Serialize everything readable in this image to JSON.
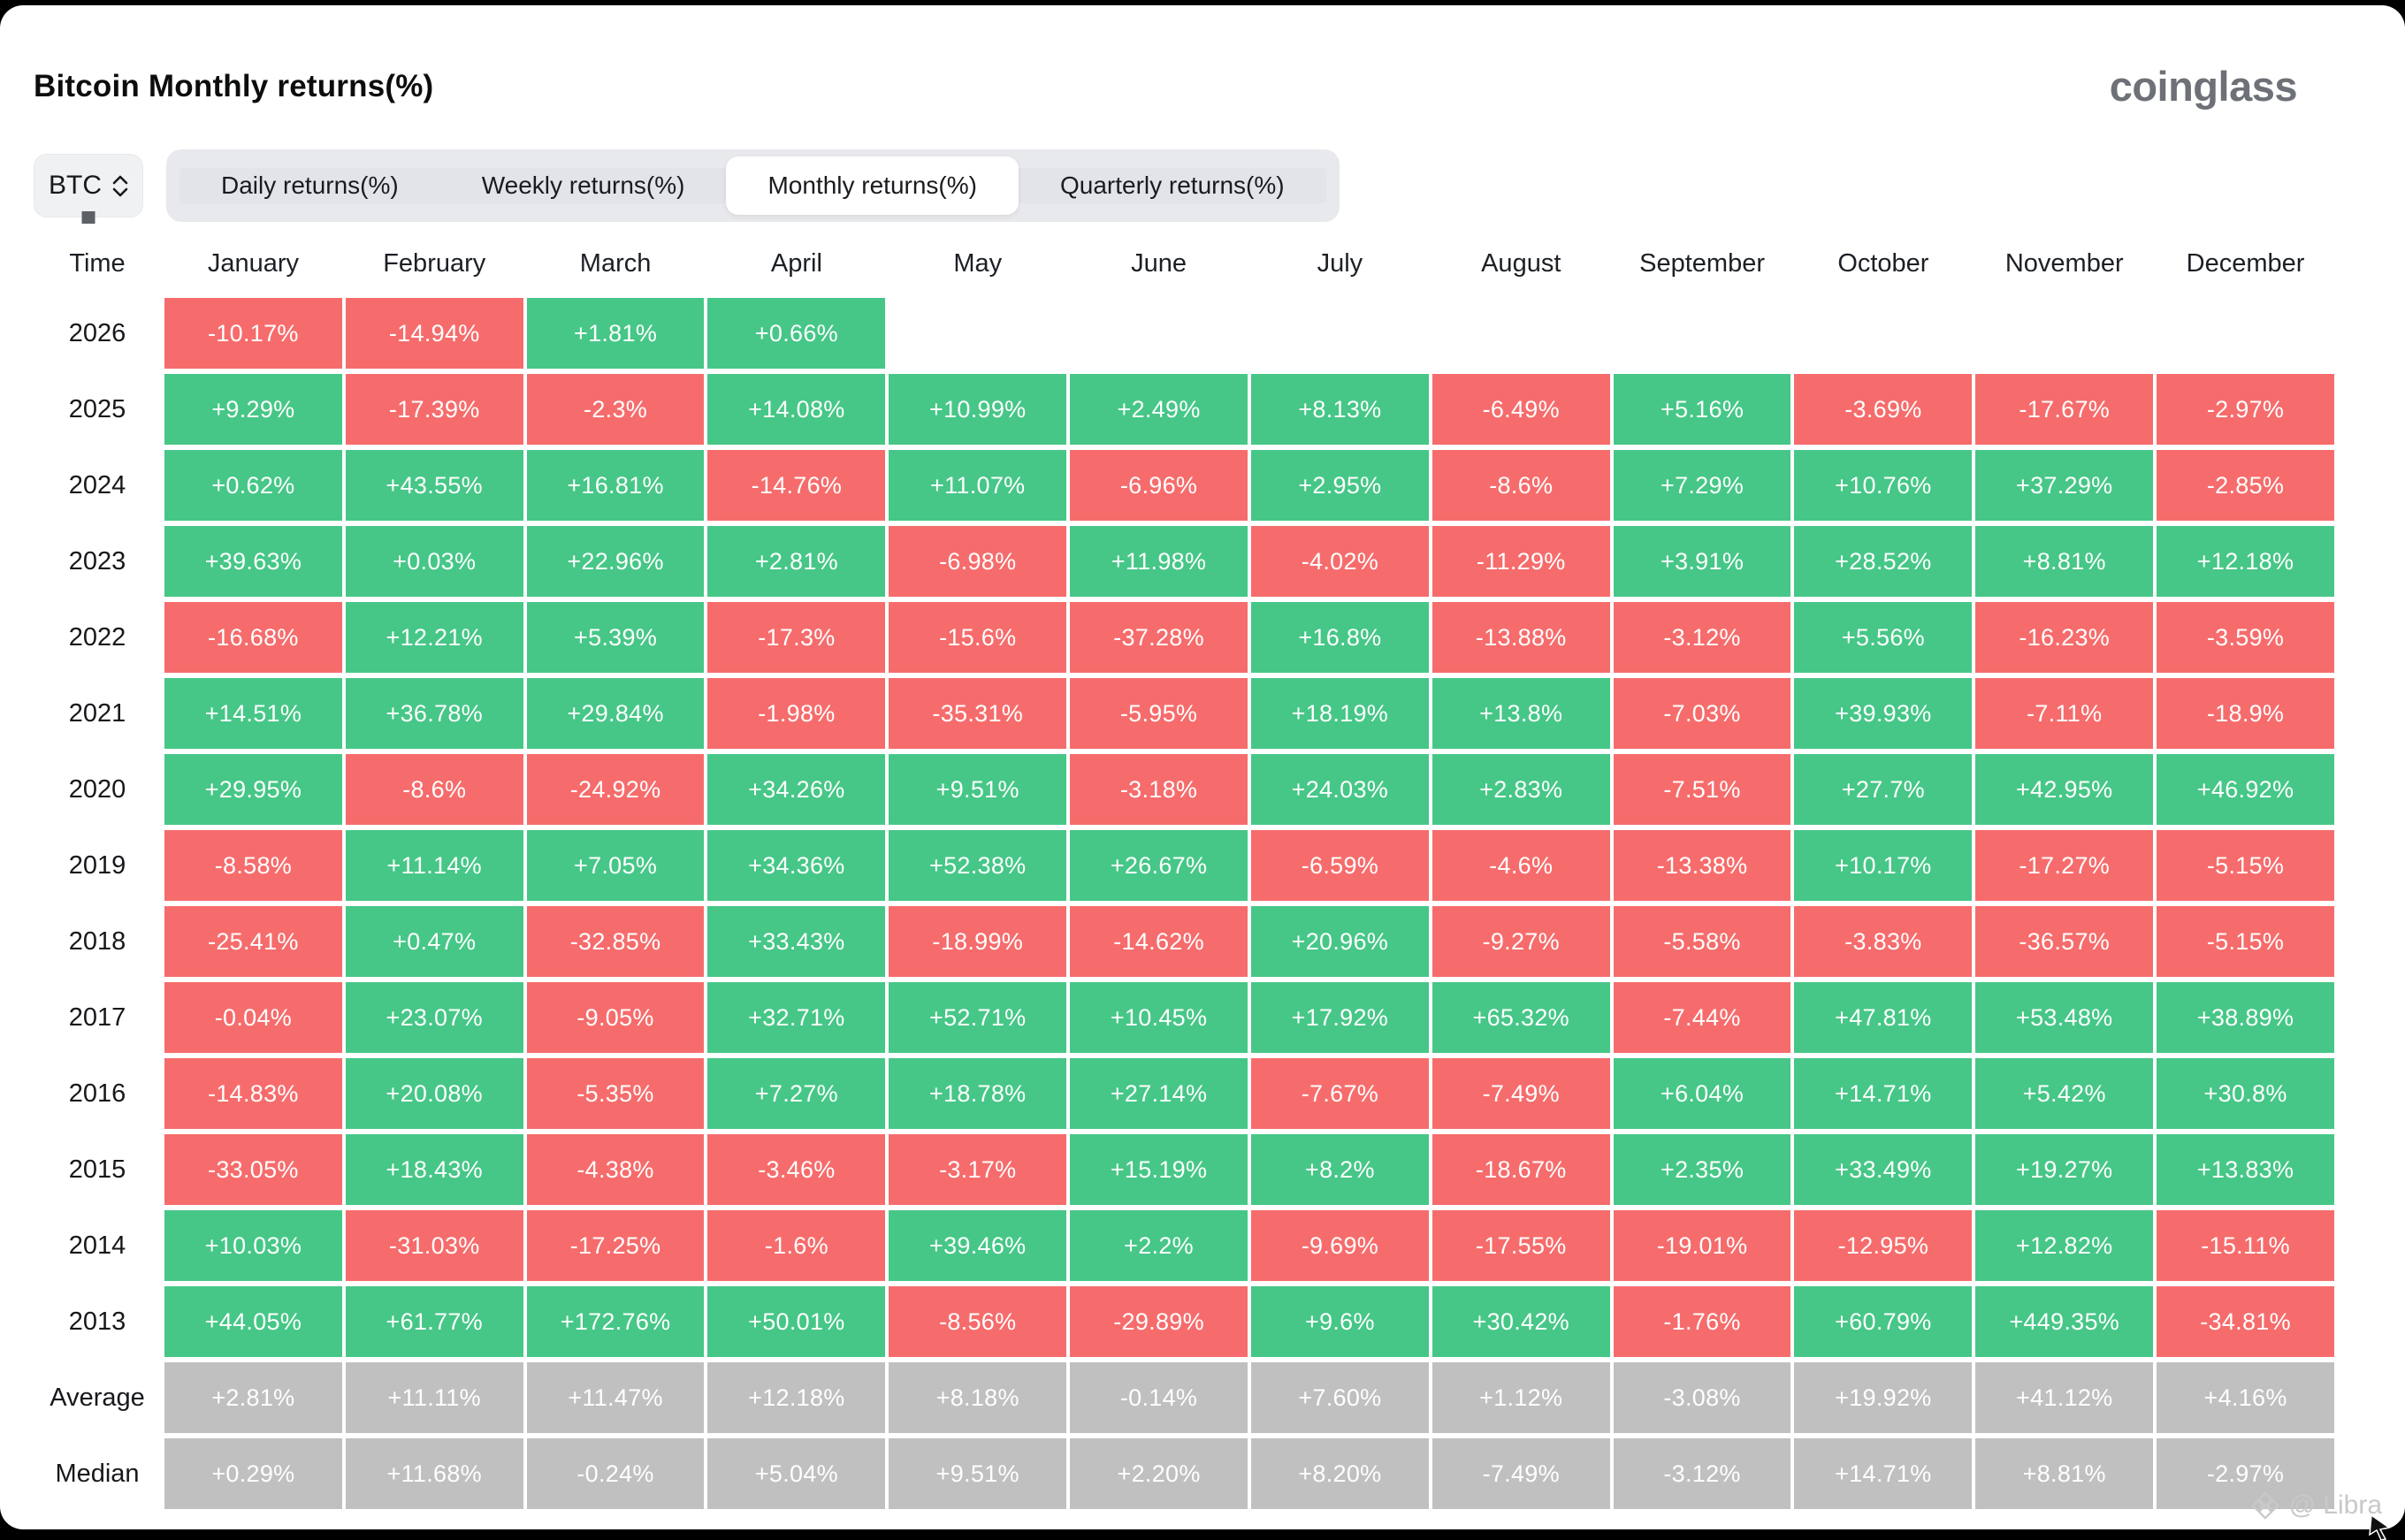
{
  "header": {
    "title": "Bitcoin Monthly returns(%)",
    "brand": "coinglass"
  },
  "controls": {
    "symbol_select": {
      "value": "BTC"
    },
    "tabs": [
      {
        "label": "Daily returns(%)",
        "active": false
      },
      {
        "label": "Weekly returns(%)",
        "active": false
      },
      {
        "label": "Monthly returns(%)",
        "active": true
      },
      {
        "label": "Quarterly returns(%)",
        "active": false
      }
    ]
  },
  "colors": {
    "positive": "#46c787",
    "negative": "#f66c6c",
    "neutral": "#c0c0c0"
  },
  "table": {
    "time_header": "Time",
    "month_headers": [
      "January",
      "February",
      "March",
      "April",
      "May",
      "June",
      "July",
      "August",
      "September",
      "October",
      "November",
      "December"
    ],
    "rows": [
      {
        "label": "2026",
        "type": "year",
        "values": [
          "-10.17%",
          "-14.94%",
          "+1.81%",
          "+0.66%",
          "",
          "",
          "",
          "",
          "",
          "",
          "",
          ""
        ]
      },
      {
        "label": "2025",
        "type": "year",
        "values": [
          "+9.29%",
          "-17.39%",
          "-2.3%",
          "+14.08%",
          "+10.99%",
          "+2.49%",
          "+8.13%",
          "-6.49%",
          "+5.16%",
          "-3.69%",
          "-17.67%",
          "-2.97%"
        ]
      },
      {
        "label": "2024",
        "type": "year",
        "values": [
          "+0.62%",
          "+43.55%",
          "+16.81%",
          "-14.76%",
          "+11.07%",
          "-6.96%",
          "+2.95%",
          "-8.6%",
          "+7.29%",
          "+10.76%",
          "+37.29%",
          "-2.85%"
        ]
      },
      {
        "label": "2023",
        "type": "year",
        "values": [
          "+39.63%",
          "+0.03%",
          "+22.96%",
          "+2.81%",
          "-6.98%",
          "+11.98%",
          "-4.02%",
          "-11.29%",
          "+3.91%",
          "+28.52%",
          "+8.81%",
          "+12.18%"
        ]
      },
      {
        "label": "2022",
        "type": "year",
        "values": [
          "-16.68%",
          "+12.21%",
          "+5.39%",
          "-17.3%",
          "-15.6%",
          "-37.28%",
          "+16.8%",
          "-13.88%",
          "-3.12%",
          "+5.56%",
          "-16.23%",
          "-3.59%"
        ]
      },
      {
        "label": "2021",
        "type": "year",
        "values": [
          "+14.51%",
          "+36.78%",
          "+29.84%",
          "-1.98%",
          "-35.31%",
          "-5.95%",
          "+18.19%",
          "+13.8%",
          "-7.03%",
          "+39.93%",
          "-7.11%",
          "-18.9%"
        ]
      },
      {
        "label": "2020",
        "type": "year",
        "values": [
          "+29.95%",
          "-8.6%",
          "-24.92%",
          "+34.26%",
          "+9.51%",
          "-3.18%",
          "+24.03%",
          "+2.83%",
          "-7.51%",
          "+27.7%",
          "+42.95%",
          "+46.92%"
        ]
      },
      {
        "label": "2019",
        "type": "year",
        "values": [
          "-8.58%",
          "+11.14%",
          "+7.05%",
          "+34.36%",
          "+52.38%",
          "+26.67%",
          "-6.59%",
          "-4.6%",
          "-13.38%",
          "+10.17%",
          "-17.27%",
          "-5.15%"
        ]
      },
      {
        "label": "2018",
        "type": "year",
        "values": [
          "-25.41%",
          "+0.47%",
          "-32.85%",
          "+33.43%",
          "-18.99%",
          "-14.62%",
          "+20.96%",
          "-9.27%",
          "-5.58%",
          "-3.83%",
          "-36.57%",
          "-5.15%"
        ]
      },
      {
        "label": "2017",
        "type": "year",
        "values": [
          "-0.04%",
          "+23.07%",
          "-9.05%",
          "+32.71%",
          "+52.71%",
          "+10.45%",
          "+17.92%",
          "+65.32%",
          "-7.44%",
          "+47.81%",
          "+53.48%",
          "+38.89%"
        ]
      },
      {
        "label": "2016",
        "type": "year",
        "values": [
          "-14.83%",
          "+20.08%",
          "-5.35%",
          "+7.27%",
          "+18.78%",
          "+27.14%",
          "-7.67%",
          "-7.49%",
          "+6.04%",
          "+14.71%",
          "+5.42%",
          "+30.8%"
        ]
      },
      {
        "label": "2015",
        "type": "year",
        "values": [
          "-33.05%",
          "+18.43%",
          "-4.38%",
          "-3.46%",
          "-3.17%",
          "+15.19%",
          "+8.2%",
          "-18.67%",
          "+2.35%",
          "+33.49%",
          "+19.27%",
          "+13.83%"
        ]
      },
      {
        "label": "2014",
        "type": "year",
        "values": [
          "+10.03%",
          "-31.03%",
          "-17.25%",
          "-1.6%",
          "+39.46%",
          "+2.2%",
          "-9.69%",
          "-17.55%",
          "-19.01%",
          "-12.95%",
          "+12.82%",
          "-15.11%"
        ]
      },
      {
        "label": "2013",
        "type": "year",
        "values": [
          "+44.05%",
          "+61.77%",
          "+172.76%",
          "+50.01%",
          "-8.56%",
          "-29.89%",
          "+9.6%",
          "+30.42%",
          "-1.76%",
          "+60.79%",
          "+449.35%",
          "-34.81%"
        ]
      },
      {
        "label": "Average",
        "type": "summary",
        "values": [
          "+2.81%",
          "+11.11%",
          "+11.47%",
          "+12.18%",
          "+8.18%",
          "-0.14%",
          "+7.60%",
          "+1.12%",
          "-3.08%",
          "+19.92%",
          "+41.12%",
          "+4.16%"
        ]
      },
      {
        "label": "Median",
        "type": "summary",
        "values": [
          "+0.29%",
          "+11.68%",
          "-0.24%",
          "+5.04%",
          "+9.51%",
          "+2.20%",
          "+8.20%",
          "-7.49%",
          "-3.12%",
          "+14.71%",
          "+8.81%",
          "-2.97%"
        ]
      }
    ]
  },
  "watermark": {
    "label": "@ Libra"
  }
}
